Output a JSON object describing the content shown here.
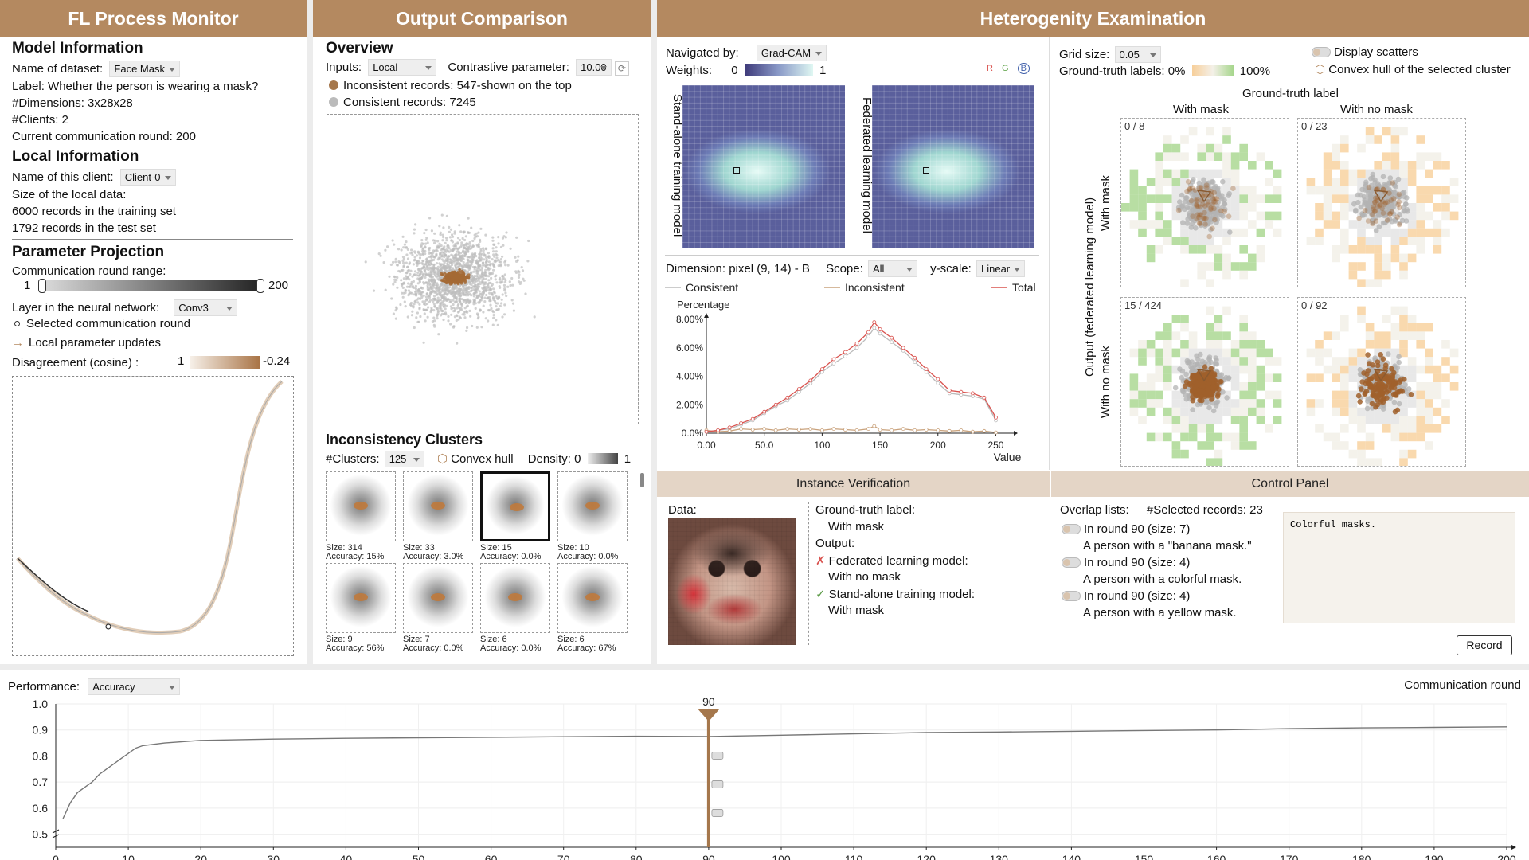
{
  "monitor": {
    "title": "FL Process Monitor",
    "model_info_title": "Model Information",
    "dataset_label": "Name of dataset:",
    "dataset_value": "Face Mask",
    "label_text": "Label: Whether the person is wearing a mask?",
    "dimensions_text": "#Dimensions: 3x28x28",
    "clients_text": "#Clients: 2",
    "round_text": "Current communication round: 200",
    "local_info_title": "Local Information",
    "client_label": "Name of this client:",
    "client_value": "Client-0",
    "size_text": "Size of the local data:",
    "train_text": "6000 records in the training set",
    "test_text": "1792 records in the test set",
    "param_title": "Parameter Projection",
    "range_label": "Communication round range:",
    "range_min": "1",
    "range_max": "200",
    "layer_label": "Layer in the neural network:",
    "layer_value": "Conv3",
    "legend_selected": "Selected communication round",
    "legend_updates": "Local parameter updates",
    "disagree_label": "Disagreement (cosine) :",
    "disagree_min": "1",
    "disagree_max": "-0.24"
  },
  "output": {
    "title": "Output Comparison",
    "overview_title": "Overview",
    "inputs_label": "Inputs:",
    "inputs_value": "Local",
    "contrastive_label": "Contrastive parameter:",
    "contrastive_value": "10.00",
    "inconsistent_text": "Inconsistent records: 547-shown on the top",
    "consistent_text": "Consistent records: 7245",
    "clusters_title": "Inconsistency Clusters",
    "nclusters_label": "#Clusters:",
    "nclusters_value": "125",
    "hull_label": "Convex hull",
    "density_label": "Density: 0",
    "density_max": "1",
    "clusters": [
      {
        "size": "Size: 314",
        "acc": "Accuracy: 15%"
      },
      {
        "size": "Size: 33",
        "acc": "Accuracy: 3.0%"
      },
      {
        "size": "Size: 15",
        "acc": "Accuracy: 0.0%"
      },
      {
        "size": "Size: 10",
        "acc": "Accuracy: 0.0%"
      },
      {
        "size": "Size: 9",
        "acc": "Accuracy: 56%"
      },
      {
        "size": "Size: 7",
        "acc": "Accuracy: 0.0%"
      },
      {
        "size": "Size: 6",
        "acc": "Accuracy: 0.0%"
      },
      {
        "size": "Size: 6",
        "acc": "Accuracy: 67%"
      }
    ]
  },
  "hetero": {
    "title": "Heterogenity Examination",
    "nav_label": "Navigated by:",
    "nav_value": "Grad-CAM",
    "weights_label": "Weights:",
    "weights_min": "0",
    "weights_max": "1",
    "rgb": [
      "R",
      "G",
      "B"
    ],
    "heat1_label": "Stand-alone training model",
    "heat2_label": "Federated learning model",
    "dimension_label": "Dimension: pixel (9, 14) - B",
    "scope_label": "Scope:",
    "scope_value": "All",
    "yscale_label": "y-scale:",
    "yscale_value": "Linear",
    "grid_label": "Grid size:",
    "grid_value": "0.05",
    "gt_label": "Ground-truth labels: 0%",
    "gt_max": "100%",
    "display_scatters": "Display scatters",
    "hull_selected": "Convex hull of the selected cluster",
    "gt_axis": "Ground-truth label",
    "col_with": "With mask",
    "col_without": "With no mask",
    "row_axis": "Output (federated learning model)",
    "row_with": "With mask",
    "row_without": "With no mask",
    "cells": [
      "0 / 8",
      "0 / 23",
      "15 / 424",
      "0 / 92"
    ]
  },
  "dist_chart": {
    "chart_data": {
      "type": "line",
      "title": "",
      "xlabel": "Value",
      "ylabel": "Percentage",
      "xlim": [
        0,
        260
      ],
      "ylim": [
        0,
        8
      ],
      "x_ticks": [
        "0.00",
        "50.0",
        "100",
        "150",
        "200",
        "250"
      ],
      "x_tick_values": [
        0,
        50,
        100,
        150,
        200,
        250
      ],
      "y_ticks": [
        "0.0%",
        "2.00%",
        "4.00%",
        "6.00%",
        "8.00%"
      ],
      "y_tick_values": [
        0,
        2,
        4,
        6,
        8
      ],
      "x": [
        0,
        10,
        20,
        30,
        40,
        50,
        60,
        70,
        80,
        90,
        100,
        110,
        120,
        130,
        140,
        145,
        150,
        160,
        170,
        180,
        190,
        200,
        210,
        220,
        230,
        240,
        250
      ],
      "series": [
        {
          "name": "Consistent",
          "color": "#bbbbbb",
          "values": [
            0.1,
            0.2,
            0.3,
            0.6,
            0.9,
            1.4,
            1.9,
            2.3,
            2.9,
            3.5,
            4.3,
            4.9,
            5.4,
            6.0,
            6.8,
            7.4,
            7.0,
            6.4,
            5.8,
            5.0,
            4.3,
            3.5,
            2.8,
            2.7,
            2.6,
            2.4,
            0.9
          ]
        },
        {
          "name": "Inconsistent",
          "color": "#c9a27c",
          "values": [
            0.2,
            0.1,
            0.15,
            0.3,
            0.25,
            0.3,
            0.2,
            0.3,
            0.25,
            0.3,
            0.2,
            0.3,
            0.25,
            0.2,
            0.3,
            0.5,
            0.25,
            0.2,
            0.3,
            0.2,
            0.25,
            0.2,
            0.15,
            0.2,
            0.1,
            0.15,
            0.05
          ]
        },
        {
          "name": "Total",
          "color": "#d9534f",
          "values": [
            0.1,
            0.2,
            0.4,
            0.7,
            1.0,
            1.5,
            2.0,
            2.5,
            3.1,
            3.7,
            4.5,
            5.2,
            5.7,
            6.3,
            7.1,
            7.8,
            7.3,
            6.7,
            6.0,
            5.3,
            4.5,
            3.8,
            3.0,
            2.9,
            2.8,
            2.5,
            1.1
          ]
        }
      ]
    }
  },
  "instance": {
    "title": "Instance Verification",
    "data_label": "Data:",
    "gt_label": "Ground-truth label:",
    "gt_value": "With mask",
    "output_label": "Output:",
    "fl_label": "Federated learning model:",
    "fl_value": "With no mask",
    "sa_label": "Stand-alone training model:",
    "sa_value": "With mask",
    "x_mark": "✗",
    "check_mark": "✓"
  },
  "control": {
    "title": "Control Panel",
    "overlap_label": "Overlap lists:",
    "selected_label": "#Selected records: 23",
    "items": [
      {
        "round": "In round 90 (size: 7)",
        "desc": "A person with a \"banana mask.\""
      },
      {
        "round": "In round 90 (size: 4)",
        "desc": "A person with a colorful mask."
      },
      {
        "round": "In round 90 (size: 4)",
        "desc": "A person with a yellow mask."
      }
    ],
    "notes": "Colorful masks.",
    "record_button": "Record"
  },
  "performance": {
    "label": "Performance:",
    "metric": "Accuracy",
    "xlabel": "Communication round",
    "marker_round": "90",
    "chart_data": {
      "type": "line",
      "title": "",
      "xlabel": "Communication round",
      "ylabel": "",
      "xlim": [
        0,
        200
      ],
      "ylim": [
        0.45,
        1.0
      ],
      "x_ticks": [
        "0",
        "10",
        "20",
        "30",
        "40",
        "50",
        "60",
        "70",
        "80",
        "90",
        "100",
        "110",
        "120",
        "130",
        "140",
        "150",
        "160",
        "170",
        "180",
        "190",
        "200"
      ],
      "y_ticks": [
        "0.5",
        "0.6",
        "0.7",
        "0.8",
        "0.9",
        "1.0"
      ],
      "y_tick_values": [
        0.5,
        0.6,
        0.7,
        0.8,
        0.9,
        1.0
      ],
      "x": [
        1,
        2,
        3,
        4,
        5,
        6,
        7,
        8,
        9,
        10,
        11,
        12,
        15,
        20,
        30,
        40,
        50,
        60,
        70,
        80,
        90,
        100,
        110,
        120,
        130,
        140,
        150,
        160,
        170,
        180,
        190,
        200
      ],
      "series": [
        {
          "name": "Accuracy",
          "values": [
            0.56,
            0.62,
            0.66,
            0.68,
            0.7,
            0.73,
            0.75,
            0.77,
            0.79,
            0.81,
            0.83,
            0.84,
            0.85,
            0.86,
            0.865,
            0.868,
            0.87,
            0.872,
            0.874,
            0.876,
            0.875,
            0.88,
            0.885,
            0.89,
            0.892,
            0.895,
            0.898,
            0.9,
            0.905,
            0.908,
            0.91,
            0.912
          ]
        }
      ]
    }
  }
}
